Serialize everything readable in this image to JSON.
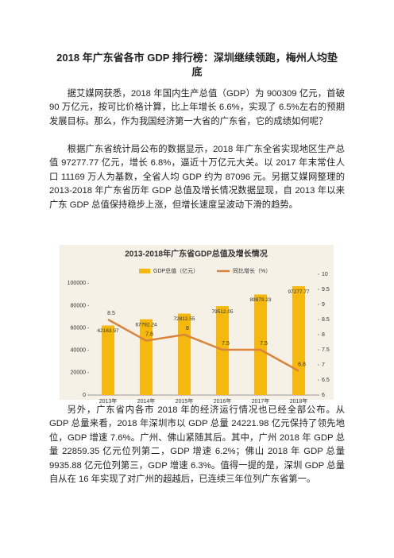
{
  "title": "2018 年广东省各市 GDP 排行榜：深圳继续领跑，梅州人均垫底",
  "paragraphs": [
    "据艾媒网获悉，2018 年国内生产总值（GDP）为 900309 亿元，首破 90 万亿元，按可比价格计算，比上年增长 6.6%，实现了 6.5%左右的预期发展目标。那么，作为我国经济第一大省的广东省，它的成绩如何呢？",
    "根据广东省统计局公布的数据显示，2018 年广东全省实现地区生产总值 97277.77 亿元，增长 6.8%，逼近十万亿元大关。以 2017 年末常住人口 11169 万人为基数，全省人均 GDP 约为 87096 元。另据艾媒网整理的 2013-2018 年广东省历年 GDP 总值及增长情况数据显现，自 2013 年以来广东 GDP 总值保持稳步上涨，但增长速度呈波动下滑的趋势。",
    "另外，广东省内各市 2018 年的经济运行情况也已经全部公布。从 GDP 总量来看，2018 年深圳市以 GDP 总量 24221.98 亿元保持了领先地位，GDP 增速 7.6%。广州、佛山紧随其后。其中，广州 2018 年 GDP 总量 22859.35 亿元位列第二，GDP 增速 6.2%；佛山 2018 年 GDP 总量 9935.88 亿元位列第三，GDP 增速 6.3%。值得一提的是，深圳 GDP 总量自从在 16 年实现了对广州的超越后，已连续三年位列广东省第一。"
  ],
  "chart_data": {
    "type": "bar-line",
    "title": "2013-2018年广东省GDP总值及增长情况",
    "categories": [
      "2013年",
      "2014年",
      "2015年",
      "2016年",
      "2017年",
      "2018年"
    ],
    "series": [
      {
        "name": "GDP总值（亿元）",
        "color": "#f5b80f",
        "values": [
          62163.97,
          67792.24,
          72812.55,
          79512.05,
          89879.23,
          97277.77
        ]
      },
      {
        "name": "同比增长（%）",
        "color": "#d9843a",
        "axis": "y2",
        "values": [
          8.5,
          7.8,
          8,
          7.5,
          7.5,
          6.8
        ]
      }
    ],
    "ylim": [
      0,
      108000
    ],
    "yticks": [
      0,
      20000,
      40000,
      60000,
      80000,
      100000
    ],
    "y2lim": [
      6,
      10
    ],
    "y2ticks": [
      6,
      6.5,
      7,
      7.5,
      8,
      8.5,
      9,
      9.5,
      10
    ]
  }
}
